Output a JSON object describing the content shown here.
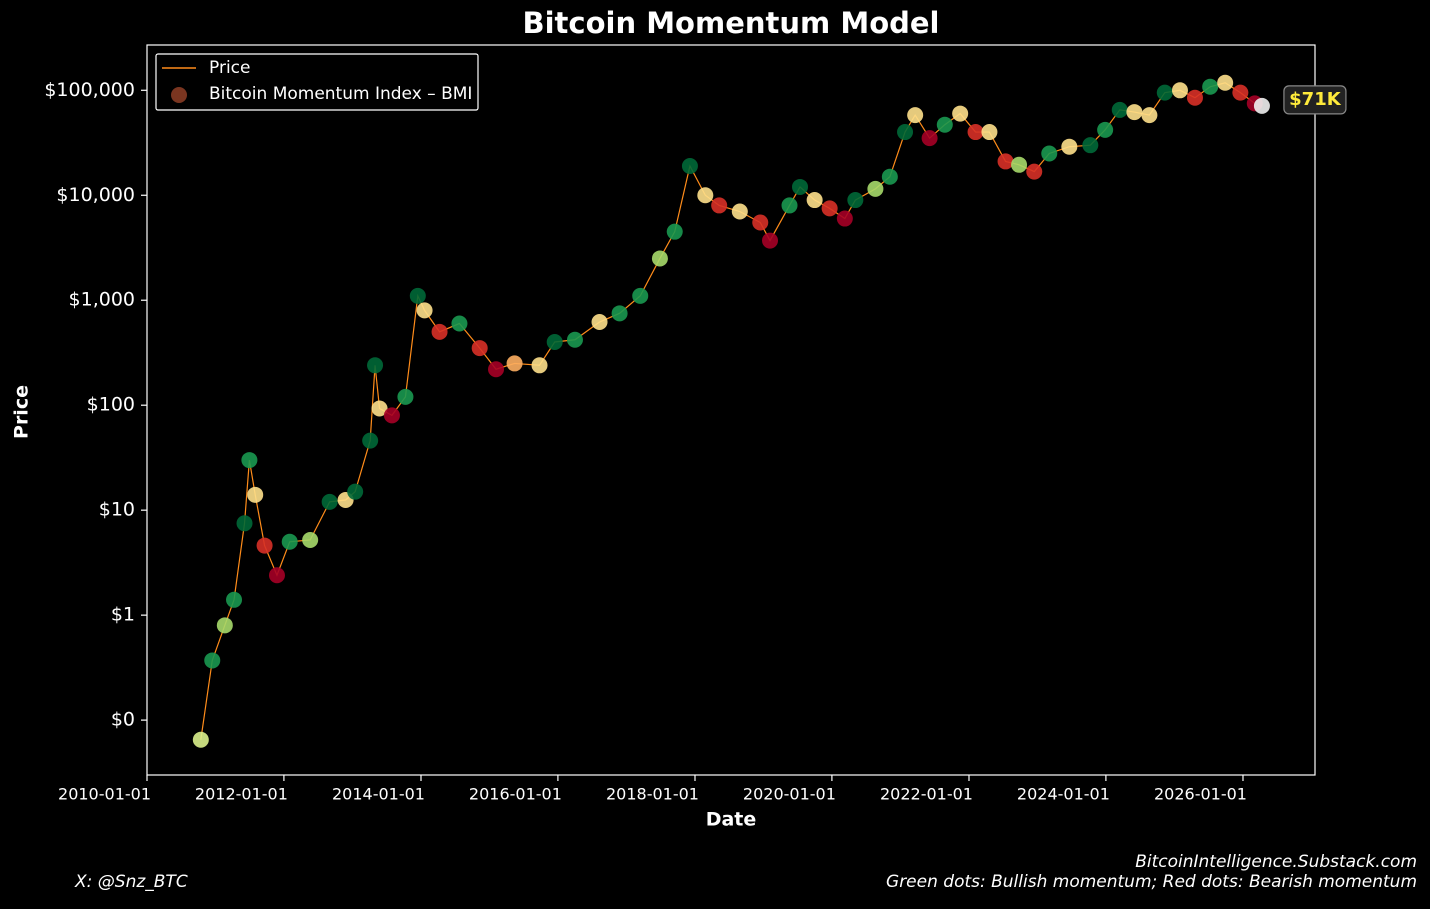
{
  "chart_data": {
    "type": "line",
    "title": "Bitcoin Momentum Model",
    "x_label": "Date",
    "y_label": "Price",
    "log_scale": true,
    "legend_position": "upper left",
    "xlim": [
      "2010-01-01",
      "2027-01-20"
    ],
    "xticks": [
      "2010-01-01",
      "2012-01-01",
      "2014-01-01",
      "2016-01-01",
      "2018-01-01",
      "2020-01-01",
      "2022-01-01",
      "2024-01-01",
      "2026-01-01"
    ],
    "ylim": [
      0.03,
      270000
    ],
    "yticks": [
      {
        "value": 0.1,
        "label": "$0"
      },
      {
        "value": 1,
        "label": "$1"
      },
      {
        "value": 10,
        "label": "$10"
      },
      {
        "value": 100,
        "label": "$100"
      },
      {
        "value": 1000,
        "label": "$1,000"
      },
      {
        "value": 10000,
        "label": "$10,000"
      },
      {
        "value": 100000,
        "label": "$100,000"
      }
    ],
    "x": [
      "2010-10-15",
      "2010-12-15",
      "2011-02-20",
      "2011-04-10",
      "2011-06-05",
      "2011-07-01",
      "2011-08-01",
      "2011-09-20",
      "2011-11-25",
      "2012-02-01",
      "2012-05-20",
      "2012-09-01",
      "2012-11-25",
      "2013-01-15",
      "2013-04-05",
      "2013-05-01",
      "2013-05-25",
      "2013-07-30",
      "2013-10-10",
      "2013-12-15",
      "2014-01-20",
      "2014-04-10",
      "2014-07-25",
      "2014-11-10",
      "2015-02-05",
      "2015-05-15",
      "2015-09-25",
      "2015-12-15",
      "2016-04-01",
      "2016-08-10",
      "2016-11-25",
      "2017-03-15",
      "2017-06-28",
      "2017-09-15",
      "2017-12-05",
      "2018-02-25",
      "2018-05-10",
      "2018-08-28",
      "2018-12-15",
      "2019-02-05",
      "2019-05-20",
      "2019-07-15",
      "2019-10-01",
      "2019-12-20",
      "2020-03-10",
      "2020-05-05",
      "2020-08-20",
      "2020-11-05",
      "2021-01-25",
      "2021-03-20",
      "2021-06-05",
      "2021-08-25",
      "2021-11-15",
      "2022-02-05",
      "2022-04-20",
      "2022-07-15",
      "2022-09-25",
      "2022-12-15",
      "2023-03-05",
      "2023-06-20",
      "2023-10-10",
      "2023-12-28",
      "2024-03-15",
      "2024-06-01",
      "2024-08-20",
      "2024-11-10",
      "2025-01-30",
      "2025-04-20",
      "2025-07-10",
      "2025-09-28",
      "2025-12-18",
      "2026-03-05",
      "2026-04-12"
    ],
    "series": [
      {
        "name": "Price",
        "color": "#ff8c1a",
        "values": [
          0.065,
          0.37,
          0.8,
          1.4,
          7.5,
          30,
          14,
          4.6,
          2.4,
          5,
          5.2,
          12,
          12.5,
          15,
          46,
          240,
          93,
          80,
          120,
          1100,
          800,
          500,
          600,
          350,
          220,
          250,
          240,
          400,
          420,
          620,
          750,
          1100,
          2500,
          4500,
          19000,
          10000,
          8000,
          7000,
          5500,
          3700,
          8000,
          12000,
          9000,
          7500,
          6000,
          9000,
          11500,
          15000,
          40000,
          58000,
          35000,
          47000,
          60000,
          40000,
          40000,
          21000,
          19500,
          16800,
          25000,
          29000,
          30000,
          42000,
          65000,
          62000,
          58000,
          95000,
          100000,
          85000,
          108000,
          118000,
          95000,
          75000,
          71000
        ]
      },
      {
        "name": "Bitcoin Momentum Index – BMI",
        "color": "#7a3520",
        "point_colors": [
          "#d9ef8b",
          "#1a9850",
          "#a6d96a",
          "#1a9850",
          "#006837",
          "#1a9850",
          "#fee08b",
          "#d73027",
          "#a50026",
          "#1a9850",
          "#a6d96a",
          "#006837",
          "#fee08b",
          "#006837",
          "#006837",
          "#006837",
          "#fee08b",
          "#a50026",
          "#1a9850",
          "#006837",
          "#fee08b",
          "#d73027",
          "#1a9850",
          "#d73027",
          "#a50026",
          "#fdae61",
          "#fee08b",
          "#006837",
          "#1a9850",
          "#fee08b",
          "#1a9850",
          "#1a9850",
          "#a6d96a",
          "#1a9850",
          "#006837",
          "#fee08b",
          "#d73027",
          "#fee08b",
          "#d73027",
          "#a50026",
          "#1a9850",
          "#006837",
          "#fee08b",
          "#d73027",
          "#a50026",
          "#006837",
          "#a6d96a",
          "#1a9850",
          "#006837",
          "#fee08b",
          "#a50026",
          "#1a9850",
          "#fee08b",
          "#d73027",
          "#fee08b",
          "#d73027",
          "#a6d96a",
          "#d73027",
          "#1a9850",
          "#fee08b",
          "#006837",
          "#1a9850",
          "#006837",
          "#fee08b",
          "#fee08b",
          "#006837",
          "#fee08b",
          "#d73027",
          "#1a9850",
          "#fee08b",
          "#d73027",
          "#a50026",
          "#f0f0f0"
        ]
      }
    ],
    "annotations": [
      {
        "text": "$71K"
      }
    ],
    "credit": "X: @Snz_BTC",
    "source": "BitcoinIntelligence.Substack.com",
    "note": "Green dots: Bullish momentum; Red dots: Bearish momentum"
  }
}
